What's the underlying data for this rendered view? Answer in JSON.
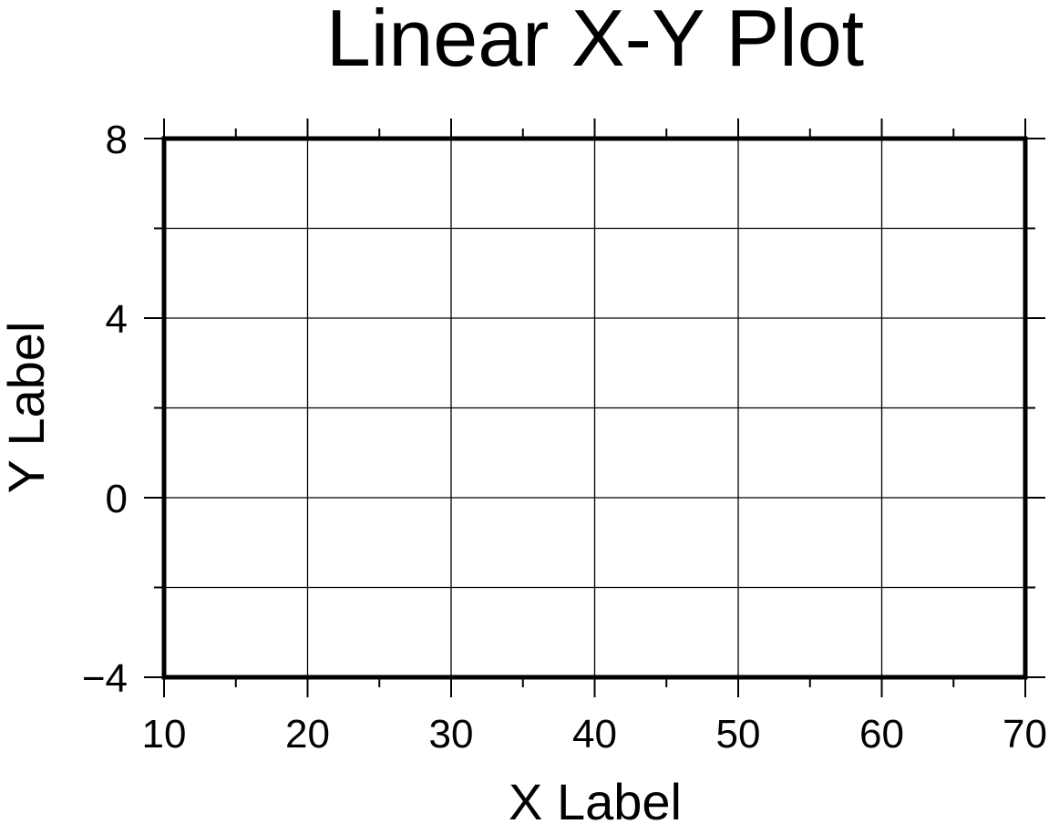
{
  "chart_data": {
    "type": "scatter",
    "title": "Linear X-Y Plot",
    "xlabel": "X Label",
    "ylabel": "Y Label",
    "xlim": [
      10,
      70
    ],
    "ylim": [
      -4,
      8
    ],
    "x_ticks": [
      10,
      20,
      30,
      40,
      50,
      60,
      70
    ],
    "x_tick_labels": [
      "10",
      "20",
      "30",
      "40",
      "50",
      "60",
      "70"
    ],
    "x_minor_step": 5,
    "y_ticks": [
      -4,
      0,
      4,
      8
    ],
    "y_tick_labels": [
      "−4",
      "0",
      "4",
      "8"
    ],
    "y_minor_step": 2,
    "x_grid": [
      10,
      20,
      30,
      40,
      50,
      60,
      70
    ],
    "y_grid": [
      -4,
      -2,
      0,
      2,
      4,
      6,
      8
    ],
    "grid": true,
    "series": [],
    "colors": {
      "frame": "#000000",
      "grid": "#000000",
      "background": "#ffffff"
    }
  }
}
